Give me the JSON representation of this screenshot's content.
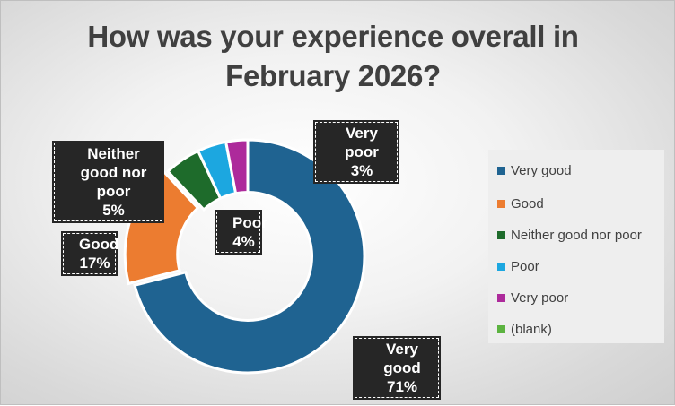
{
  "chart_data": {
    "type": "pie",
    "title": "How was your experience overall in February 2026?",
    "categories": [
      "Very good",
      "Good",
      "Neither good nor poor",
      "Poor",
      "Very poor",
      "(blank)"
    ],
    "values": [
      71,
      17,
      5,
      4,
      3,
      0
    ],
    "value_labels": [
      "71%",
      "17%",
      "5%",
      "4%",
      "3%",
      ""
    ],
    "colors": [
      "#1f6391",
      "#ec7c30",
      "#1e6b2b",
      "#1ca7e0",
      "#ad2a9b",
      "#5cb340"
    ],
    "hole": 0.55,
    "legend": "right",
    "data_labels": [
      {
        "name": "Very good",
        "text": "71%"
      },
      {
        "name": "Good",
        "text": "17%"
      },
      {
        "name": "Neither good nor poor",
        "text": "5%"
      },
      {
        "name": "Poor",
        "text": "4%"
      },
      {
        "name": "Very poor",
        "text": "3%"
      }
    ]
  }
}
